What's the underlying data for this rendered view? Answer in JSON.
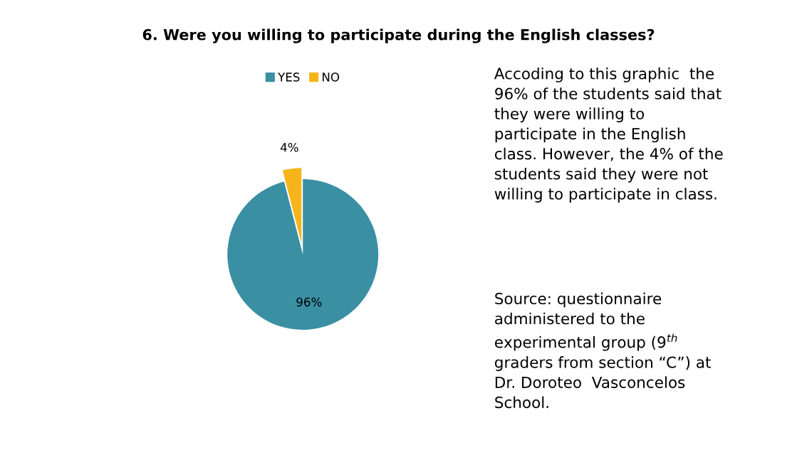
{
  "chart_data": {
    "type": "pie",
    "title": "6. Were you willing to participate during the English classes?",
    "categories": [
      "YES",
      "NO"
    ],
    "values": [
      96,
      4
    ],
    "colors": [
      "#3a8fa3",
      "#f5b41a"
    ],
    "value_labels": [
      "96%",
      "4%"
    ],
    "legend": "top",
    "annotations": [
      "Accoding to this graphic  the\n96% of the students said that\nthey were willing to\nparticipate in the English\nclass. However, the 4% of the\nstudents said they were not\nwilling to participate in class.",
      "Source: questionnaire\nadministered to the\nexperimental group (9$^{th}$\ngraders from section “C”) at\nDr. Doroteo  Vasconcelos\nSchool."
    ]
  }
}
